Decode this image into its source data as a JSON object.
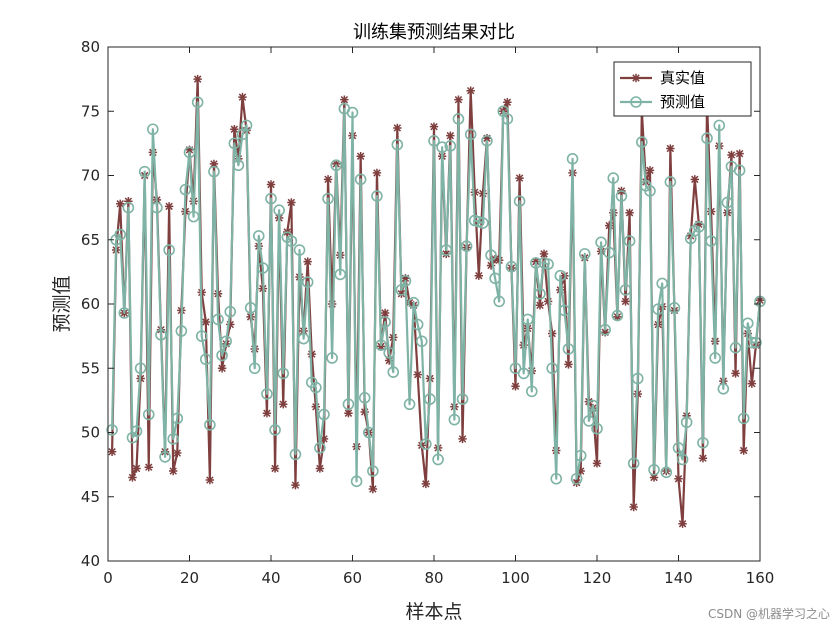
{
  "chart_data": {
    "type": "line",
    "title": "训练集预测结果对比",
    "xlabel": "样本点",
    "ylabel": "预测值",
    "xlim": [
      0,
      160
    ],
    "ylim": [
      40,
      80
    ],
    "xticks": [
      "0",
      "20",
      "40",
      "60",
      "80",
      "100",
      "120",
      "140",
      "160"
    ],
    "yticks": [
      "40",
      "45",
      "50",
      "55",
      "60",
      "65",
      "70",
      "75",
      "80"
    ],
    "grid": false,
    "legend_position": "top-right",
    "series": [
      {
        "name": "真实值",
        "color": "#7f3f3f",
        "marker": "asterisk",
        "x": [
          1,
          2,
          3,
          4,
          5,
          6,
          7,
          8,
          9,
          10,
          11,
          12,
          13,
          14,
          15,
          16,
          17,
          18,
          19,
          20,
          21,
          22,
          23,
          24,
          25,
          26,
          27,
          28,
          29,
          30,
          31,
          32,
          33,
          34,
          35,
          36,
          37,
          38,
          39,
          40,
          41,
          42,
          43,
          44,
          45,
          46,
          47,
          48,
          49,
          50,
          51,
          52,
          53,
          54,
          55,
          56,
          57,
          58,
          59,
          60,
          61,
          62,
          63,
          64,
          65,
          66,
          67,
          68,
          69,
          70,
          71,
          72,
          73,
          74,
          75,
          76,
          77,
          78,
          79,
          80,
          81,
          82,
          83,
          84,
          85,
          86,
          87,
          88,
          89,
          90,
          91,
          92,
          93,
          94,
          95,
          96,
          97,
          98,
          99,
          100,
          101,
          102,
          103,
          104,
          105,
          106,
          107,
          108,
          109,
          110,
          111,
          112,
          113,
          114,
          115,
          116,
          117,
          118,
          119,
          120,
          121,
          122,
          123,
          124,
          125,
          126,
          127,
          128,
          129,
          130,
          131,
          132,
          133,
          134,
          135,
          136,
          137,
          138,
          139,
          140,
          141,
          142,
          143,
          144,
          145,
          146,
          147,
          148,
          149,
          150,
          151,
          152,
          153,
          154,
          155,
          156,
          157,
          158,
          159,
          160
        ],
        "values": [
          48.5,
          64.2,
          67.8,
          59.3,
          68.0,
          46.5,
          47.2,
          54.2,
          70.0,
          47.3,
          71.8,
          68.1,
          58.0,
          48.5,
          67.6,
          47.0,
          48.4,
          59.5,
          67.2,
          72.0,
          68.0,
          77.5,
          60.9,
          58.6,
          46.3,
          70.9,
          60.8,
          55.0,
          56.9,
          58.4,
          73.6,
          71.3,
          76.1,
          73.5,
          59.0,
          56.5,
          64.5,
          61.2,
          51.5,
          69.3,
          47.2,
          66.7,
          52.2,
          65.6,
          67.9,
          45.9,
          62.1,
          57.9,
          63.3,
          56.1,
          52.0,
          47.2,
          49.5,
          69.7,
          60.0,
          70.9,
          63.8,
          75.9,
          51.5,
          73.1,
          48.9,
          71.5,
          51.6,
          50.0,
          45.6,
          70.2,
          56.7,
          59.3,
          55.6,
          57.4,
          73.7,
          60.8,
          62.0,
          60.1,
          59.9,
          54.5,
          49.0,
          46.0,
          54.2,
          73.8,
          48.8,
          71.5,
          63.9,
          73.1,
          52.0,
          75.9,
          49.5,
          64.4,
          76.6,
          68.7,
          62.2,
          68.6,
          72.9,
          63.0,
          63.5,
          63.4,
          75.0,
          75.7,
          62.8,
          53.6,
          69.8,
          56.8,
          58.1,
          54.8,
          63.3,
          59.9,
          63.9,
          60.2,
          57.7,
          48.6,
          61.1,
          62.2,
          55.3,
          70.2,
          46.1,
          47.0,
          63.6,
          52.4,
          51.9,
          47.6,
          64.1,
          57.8,
          66.1,
          67.1,
          59.0,
          68.8,
          60.2,
          67.1,
          44.2,
          53.0,
          75.0,
          69.5,
          70.4,
          46.5,
          58.4,
          59.8,
          47.0,
          72.1,
          59.5,
          46.4,
          42.9,
          51.3,
          65.3,
          69.7,
          66.2,
          48.0,
          75.6,
          67.2,
          57.1,
          72.3,
          54.0,
          67.1,
          71.6,
          54.6,
          71.7,
          48.6,
          57.7,
          53.8,
          56.8,
          60.3
        ]
      },
      {
        "name": "预测值",
        "color": "#7fb3a5",
        "marker": "circle",
        "x": [
          1,
          2,
          3,
          4,
          5,
          6,
          7,
          8,
          9,
          10,
          11,
          12,
          13,
          14,
          15,
          16,
          17,
          18,
          19,
          20,
          21,
          22,
          23,
          24,
          25,
          26,
          27,
          28,
          29,
          30,
          31,
          32,
          33,
          34,
          35,
          36,
          37,
          38,
          39,
          40,
          41,
          42,
          43,
          44,
          45,
          46,
          47,
          48,
          49,
          50,
          51,
          52,
          53,
          54,
          55,
          56,
          57,
          58,
          59,
          60,
          61,
          62,
          63,
          64,
          65,
          66,
          67,
          68,
          69,
          70,
          71,
          72,
          73,
          74,
          75,
          76,
          77,
          78,
          79,
          80,
          81,
          82,
          83,
          84,
          85,
          86,
          87,
          88,
          89,
          90,
          91,
          92,
          93,
          94,
          95,
          96,
          97,
          98,
          99,
          100,
          101,
          102,
          103,
          104,
          105,
          106,
          107,
          108,
          109,
          110,
          111,
          112,
          113,
          114,
          115,
          116,
          117,
          118,
          119,
          120,
          121,
          122,
          123,
          124,
          125,
          126,
          127,
          128,
          129,
          130,
          131,
          132,
          133,
          134,
          135,
          136,
          137,
          138,
          139,
          140,
          141,
          142,
          143,
          144,
          145,
          146,
          147,
          148,
          149,
          150,
          151,
          152,
          153,
          154,
          155,
          156,
          157,
          158,
          159,
          160
        ],
        "values": [
          50.2,
          65.0,
          65.4,
          59.3,
          67.5,
          49.6,
          50.1,
          55.0,
          70.3,
          51.4,
          73.6,
          67.5,
          57.6,
          48.1,
          64.2,
          49.5,
          51.1,
          57.9,
          68.9,
          71.8,
          66.8,
          75.7,
          57.5,
          55.7,
          50.6,
          70.3,
          58.8,
          56.0,
          57.1,
          59.4,
          72.5,
          70.8,
          73.2,
          73.9,
          59.7,
          55.0,
          65.3,
          62.8,
          53.0,
          68.2,
          50.2,
          67.3,
          54.6,
          65.2,
          64.9,
          48.3,
          64.2,
          57.3,
          61.7,
          53.9,
          53.5,
          48.8,
          51.4,
          68.2,
          55.8,
          70.8,
          62.3,
          75.2,
          52.2,
          74.9,
          46.2,
          69.7,
          52.7,
          50.0,
          47.0,
          68.4,
          56.8,
          58.6,
          56.2,
          54.7,
          72.4,
          61.1,
          61.8,
          52.2,
          60.1,
          58.4,
          57.1,
          49.1,
          52.6,
          72.7,
          47.9,
          72.2,
          64.2,
          72.3,
          51.0,
          74.4,
          52.6,
          64.5,
          73.2,
          66.5,
          66.4,
          66.3,
          72.7,
          63.8,
          62.0,
          60.2,
          75.0,
          74.4,
          62.9,
          55.0,
          68.0,
          54.6,
          58.8,
          53.2,
          63.2,
          60.8,
          63.2,
          63.1,
          55.0,
          46.4,
          62.2,
          59.5,
          56.5,
          71.3,
          46.4,
          48.2,
          63.9,
          50.9,
          52.1,
          50.3,
          64.8,
          58.0,
          64.0,
          69.8,
          59.1,
          68.4,
          61.1,
          64.9,
          47.6,
          54.2,
          72.6,
          69.2,
          68.8,
          47.1,
          59.6,
          61.6,
          46.9,
          69.5,
          59.7,
          48.8,
          47.9,
          50.8,
          65.1,
          65.7,
          66.0,
          49.2,
          72.9,
          64.9,
          55.8,
          73.9,
          53.4,
          67.9,
          70.7,
          56.6,
          70.4,
          51.1,
          58.5,
          57.0,
          57.0,
          60.2
        ]
      }
    ]
  },
  "watermark": "CSDN @机器学习之心"
}
